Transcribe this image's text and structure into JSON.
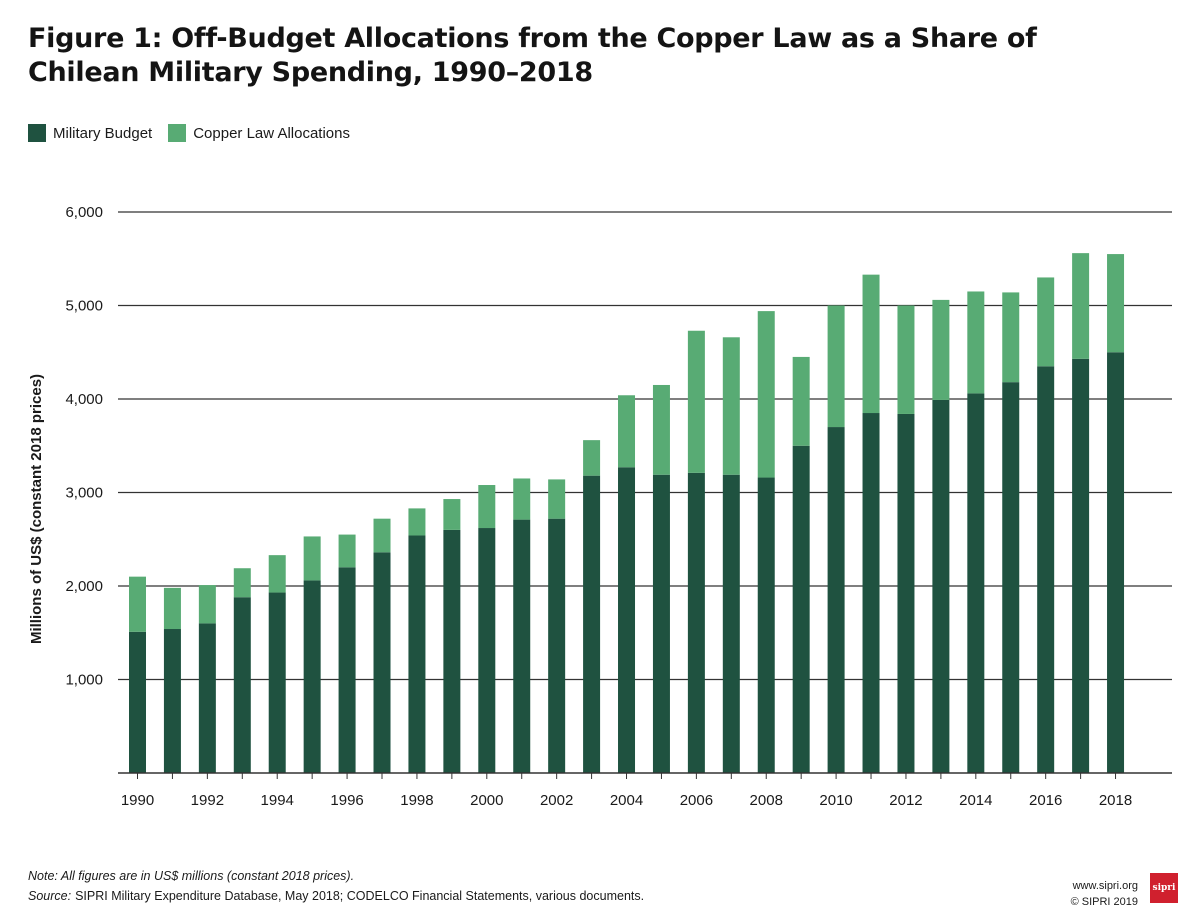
{
  "title": "Figure 1: Off-Budget Allocations from the Copper Law as a Share of Chilean Military Spending, 1990–2018",
  "legend": {
    "military_label": "Military Budget",
    "copper_label": "Copper Law Allocations"
  },
  "colors": {
    "military": "#1f5240",
    "copper": "#58ab74",
    "grid": "#333333",
    "axis": "#333333"
  },
  "chart_data": {
    "type": "bar",
    "stacked": true,
    "categories": [
      "1990",
      "1991",
      "1992",
      "1993",
      "1994",
      "1995",
      "1996",
      "1997",
      "1998",
      "1999",
      "2000",
      "2001",
      "2002",
      "2003",
      "2004",
      "2005",
      "2006",
      "2007",
      "2008",
      "2009",
      "2010",
      "2011",
      "2012",
      "2013",
      "2014",
      "2015",
      "2016",
      "2017",
      "2018"
    ],
    "x_tick_labels": [
      "1990",
      "",
      "1992",
      "",
      "1994",
      "",
      "1996",
      "",
      "1998",
      "",
      "2000",
      "",
      "2002",
      "",
      "2004",
      "",
      "2006",
      "",
      "2008",
      "",
      "2010",
      "",
      "2012",
      "",
      "2014",
      "",
      "2016",
      "",
      "2018"
    ],
    "series": [
      {
        "name": "Military Budget",
        "values": [
          1510,
          1540,
          1600,
          1880,
          1930,
          2060,
          2200,
          2360,
          2540,
          2600,
          2620,
          2710,
          2720,
          3180,
          3270,
          3190,
          3210,
          3190,
          3160,
          3500,
          3700,
          3850,
          3840,
          3990,
          4060,
          4180,
          4350,
          4430,
          4500
        ]
      },
      {
        "name": "Copper Law Allocations",
        "values": [
          590,
          440,
          410,
          310,
          400,
          470,
          350,
          360,
          290,
          330,
          460,
          440,
          420,
          380,
          770,
          960,
          1520,
          1470,
          1780,
          950,
          1300,
          1480,
          1160,
          1070,
          1090,
          960,
          950,
          1130,
          1050
        ]
      }
    ],
    "y_ticks": [
      1000,
      2000,
      3000,
      4000,
      5000,
      6000
    ],
    "y_tick_labels": [
      "1,000",
      "2,000",
      "3,000",
      "4,000",
      "5,000",
      "6,000"
    ],
    "ylim": [
      0,
      6000
    ],
    "ylabel": "Millions of US$ (constant 2018 prices)",
    "xlabel": "",
    "grid": true,
    "legend_position": "top-left"
  },
  "footer": {
    "note": "Note: All figures are in US$ millions (constant 2018 prices).",
    "source_label": "Source:",
    "source_text": "SIPRI Military Expenditure Database, May 2018; CODELCO Financial Statements, various documents.",
    "website": "www.sipri.org",
    "copyright": "© SIPRI 2019",
    "logo_text": "sipri"
  }
}
